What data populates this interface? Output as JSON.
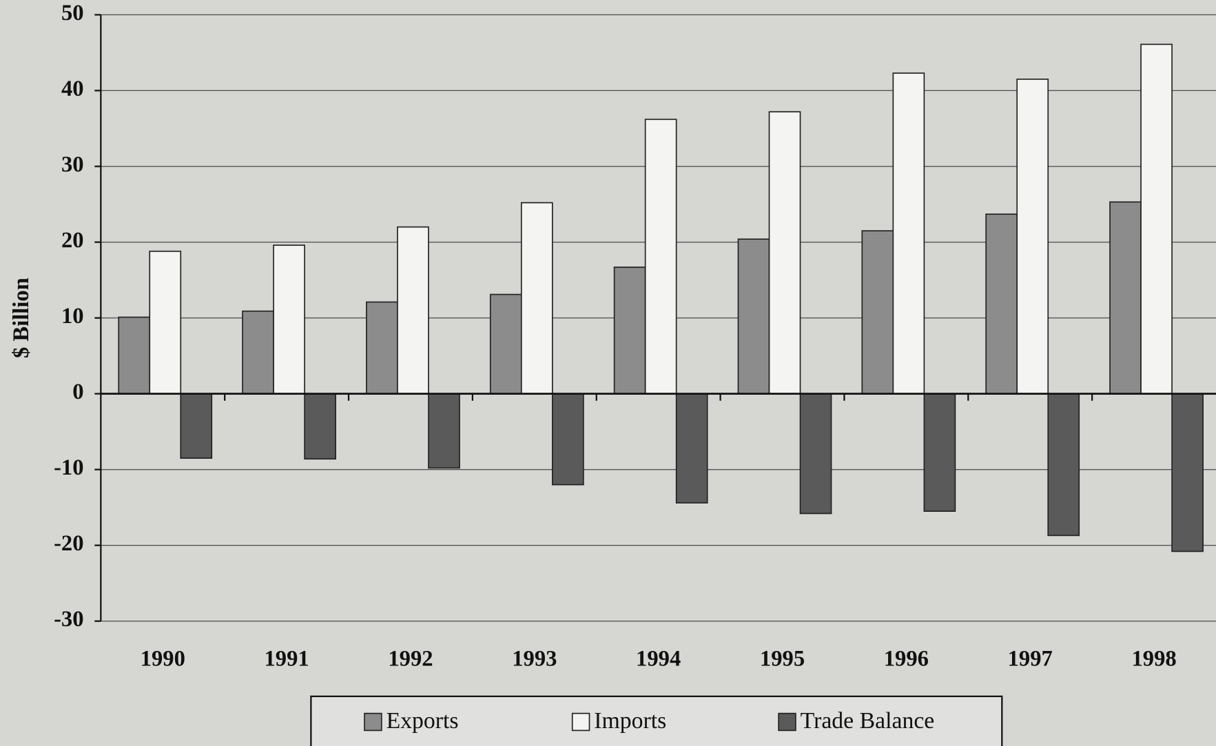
{
  "chart_data": {
    "type": "bar",
    "y_label": "$ Billion",
    "categories": [
      "1990",
      "1991",
      "1992",
      "1993",
      "1994",
      "1995",
      "1996",
      "1997",
      "1998"
    ],
    "series": [
      {
        "name": "Exports",
        "color": "#8c8c8c",
        "values": [
          10.1,
          10.9,
          12.1,
          13.1,
          16.7,
          20.4,
          21.5,
          23.7,
          25.3
        ]
      },
      {
        "name": "Imports",
        "color": "#f4f4f2",
        "values": [
          18.8,
          19.6,
          22.0,
          25.2,
          36.2,
          37.2,
          42.3,
          41.5,
          46.1
        ]
      },
      {
        "name": "Trade Balance",
        "color": "#5a5a5a",
        "values": [
          -8.5,
          -8.6,
          -9.8,
          -12.0,
          -14.4,
          -15.8,
          -15.5,
          -18.7,
          -20.8
        ]
      }
    ],
    "ylim": [
      -30,
      50
    ],
    "yticks": [
      -30,
      -20,
      -10,
      0,
      10,
      20,
      30,
      40,
      50
    ],
    "grid": true,
    "legend": "bottom"
  }
}
